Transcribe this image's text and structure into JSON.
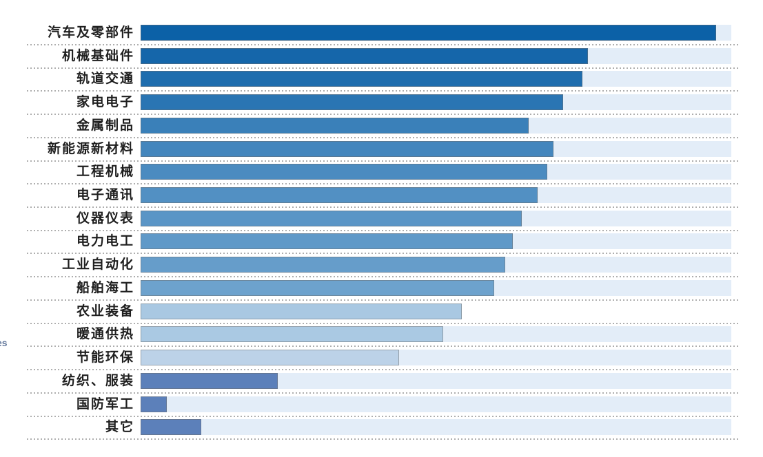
{
  "page": {
    "background_color": "#ffffff",
    "edge_fragment_text": "es",
    "edge_fragment_color": "#64799c"
  },
  "chart_data": {
    "type": "bar",
    "orientation": "horizontal",
    "title": "",
    "xlabel": "",
    "ylabel": "",
    "legend": "none",
    "axis_ticks": "none visible",
    "grid": "dotted gray horizontal separator after each row",
    "value_unit": "percent of plot width (no numeric axis shown in image)",
    "xlim_pct": [
      0,
      100
    ],
    "track_color": "#e3edf8",
    "dot_separator_color": "#aeaeae",
    "bar_border_color": "rgba(110,110,110,0.5)",
    "categories": [
      "汽车及零部件",
      "机械基础件",
      "轨道交通",
      "家电电子",
      "金属制品",
      "新能源新材料",
      "工程机械",
      "电子通讯",
      "仪器仪表",
      "电力电工",
      "工业自动化",
      "船舶海工",
      "农业装备",
      "暖通供热",
      "节能环保",
      "纺织、服装",
      "国防军工",
      "其它"
    ],
    "values_pct": [
      97.4,
      75.7,
      74.8,
      71.5,
      65.7,
      69.9,
      68.8,
      67.2,
      64.5,
      63.0,
      61.7,
      59.9,
      54.4,
      51.2,
      43.8,
      23.2,
      4.4,
      10.3
    ],
    "rows": [
      {
        "label": "汽车及零部件",
        "value_pct": 97.4,
        "color": "#0c61a7",
        "track": true
      },
      {
        "label": "机械基础件",
        "value_pct": 75.7,
        "color": "#1566aa",
        "track": true
      },
      {
        "label": "轨道交通",
        "value_pct": 74.8,
        "color": "#1e6dae",
        "track": true
      },
      {
        "label": "家电电子",
        "value_pct": 71.5,
        "color": "#2a75b3",
        "track": true
      },
      {
        "label": "金属制品",
        "value_pct": 65.7,
        "color": "#3a80b9",
        "track": true
      },
      {
        "label": "新能源新材料",
        "value_pct": 69.9,
        "color": "#4486bd",
        "track": true
      },
      {
        "label": "工程机械",
        "value_pct": 68.8,
        "color": "#4b8bc0",
        "track": true
      },
      {
        "label": "电子通讯",
        "value_pct": 67.2,
        "color": "#5290c3",
        "track": true
      },
      {
        "label": "仪器仪表",
        "value_pct": 64.5,
        "color": "#5a95c6",
        "track": true
      },
      {
        "label": "电力电工",
        "value_pct": 63.0,
        "color": "#6099c8",
        "track": true
      },
      {
        "label": "工业自动化",
        "value_pct": 61.7,
        "color": "#669dca",
        "track": true
      },
      {
        "label": "船舶海工",
        "value_pct": 59.9,
        "color": "#6da2cd",
        "track": true
      },
      {
        "label": "农业装备",
        "value_pct": 54.4,
        "color": "#a9c8e2",
        "track": false
      },
      {
        "label": "暖通供热",
        "value_pct": 51.2,
        "color": "#aac9e3",
        "track": true
      },
      {
        "label": "节能环保",
        "value_pct": 43.8,
        "color": "#bcd2e8",
        "track": true
      },
      {
        "label": "纺织、服装",
        "value_pct": 23.2,
        "color": "#5c80ba",
        "track": true
      },
      {
        "label": "国防军工",
        "value_pct": 4.4,
        "color": "#5c80ba",
        "track": true
      },
      {
        "label": "其它",
        "value_pct": 10.3,
        "color": "#5c80ba",
        "track": true
      }
    ]
  }
}
